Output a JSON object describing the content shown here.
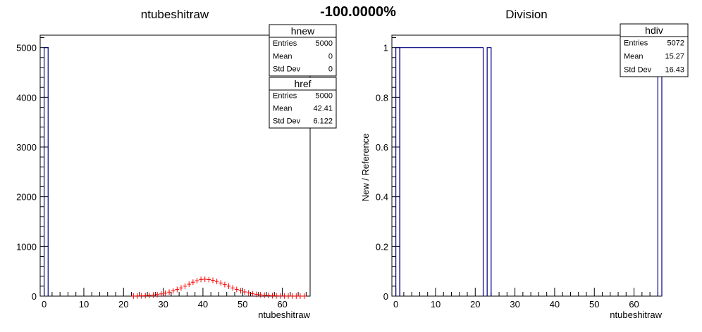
{
  "header": {
    "center_text": "-100.0000%"
  },
  "chart_data": [
    {
      "type": "bar",
      "title": "ntubeshitraw",
      "xlabel": "ntubeshitraw",
      "ylabel": "",
      "xlim": [
        -1,
        67
      ],
      "ylim": [
        0,
        5250
      ],
      "xticks": [
        0,
        10,
        20,
        30,
        40,
        50,
        60
      ],
      "yticks": [
        0,
        1000,
        2000,
        3000,
        4000,
        5000
      ],
      "series": [
        {
          "name": "hnew",
          "style": "histogram",
          "color": "#000080",
          "bins": [
            [
              0,
              1,
              5000
            ]
          ]
        },
        {
          "name": "href",
          "style": "error-markers",
          "color": "#ff0000",
          "x": [
            22.5,
            23.5,
            24.5,
            25.5,
            26.5,
            27.5,
            28.5,
            29.5,
            30.5,
            31.5,
            32.5,
            33.5,
            34.5,
            35.5,
            36.5,
            37.5,
            38.5,
            39.5,
            40.5,
            41.5,
            42.5,
            43.5,
            44.5,
            45.5,
            46.5,
            47.5,
            48.5,
            49.5,
            50.5,
            51.5,
            52.5,
            53.5,
            54.5,
            55.5,
            56.5,
            57.5,
            58.5,
            59.5,
            60.5,
            61.5,
            62.5,
            63.5,
            64.5,
            65.5
          ],
          "values": [
            2,
            4,
            6,
            10,
            15,
            22,
            32,
            45,
            60,
            80,
            105,
            135,
            165,
            200,
            240,
            280,
            310,
            335,
            340,
            332,
            318,
            295,
            265,
            232,
            200,
            165,
            135,
            108,
            85,
            65,
            48,
            36,
            26,
            18,
            13,
            9,
            6,
            4,
            3,
            2,
            2,
            1,
            1,
            1
          ]
        }
      ],
      "stats": [
        {
          "name": "hnew",
          "rows": [
            [
              "Entries",
              "5000"
            ],
            [
              "Mean",
              "0"
            ],
            [
              "Std Dev",
              "0"
            ]
          ]
        },
        {
          "name": "href",
          "rows": [
            [
              "Entries",
              "5000"
            ],
            [
              "Mean",
              "42.41"
            ],
            [
              "Std Dev",
              "6.122"
            ]
          ]
        }
      ]
    },
    {
      "type": "bar",
      "title": "Division",
      "xlabel": "ntubeshitraw",
      "ylabel": "New / Reference",
      "xlim": [
        -1,
        67
      ],
      "ylim": [
        0,
        1.05
      ],
      "xticks": [
        0,
        10,
        20,
        30,
        40,
        50,
        60
      ],
      "yticks": [
        0,
        0.2,
        0.4,
        0.6,
        0.8,
        1
      ],
      "ytick_labels": [
        "0",
        "0.2",
        "0.4",
        "0.6",
        "0.8",
        "1"
      ],
      "series": [
        {
          "name": "hdiv",
          "style": "histogram",
          "color": "#000080",
          "bins": [
            [
              0,
              1,
              1
            ],
            [
              1,
              22,
              1
            ],
            [
              23,
              24,
              1
            ],
            [
              66,
              67,
              1
            ]
          ]
        }
      ],
      "stats": [
        {
          "name": "hdiv",
          "rows": [
            [
              "Entries",
              "5072"
            ],
            [
              "Mean",
              "15.27"
            ],
            [
              "Std Dev",
              "16.43"
            ]
          ]
        }
      ]
    }
  ]
}
